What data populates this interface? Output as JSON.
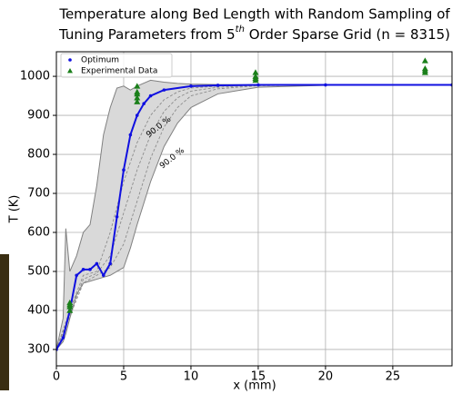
{
  "chart_data": {
    "type": "line",
    "title": {
      "line1": "Temperature along Bed Length with Random Sampling of",
      "line2_before": "Tuning Parameters from 5",
      "superscript": "th",
      "line2_after": " Order Sparse Grid (n = 8315)"
    },
    "x_label": "x (mm)",
    "y_label": "T (K)",
    "xlim": [
      0,
      29.4
    ],
    "ylim": [
      258,
      1063
    ],
    "xticks": [
      0,
      5,
      10,
      15,
      20,
      25
    ],
    "yticks": [
      300,
      400,
      500,
      600,
      700,
      800,
      900,
      1000
    ],
    "grid": true,
    "legend": "upper left",
    "envelope": {
      "color": "#d9d9d9",
      "edge_color": "#808080",
      "x": [
        0,
        0.5,
        0.7,
        1,
        1.5,
        2,
        2.5,
        3,
        3.5,
        4,
        4.5,
        5,
        5.5,
        6,
        7,
        8,
        9,
        10,
        12,
        15,
        20,
        29.4
      ],
      "upper": [
        300,
        380,
        610,
        500,
        540,
        600,
        620,
        720,
        850,
        920,
        970,
        975,
        965,
        975,
        990,
        985,
        982,
        980,
        979,
        978,
        978,
        978
      ],
      "lower": [
        300,
        320,
        340,
        380,
        440,
        470,
        475,
        480,
        485,
        490,
        500,
        510,
        560,
        620,
        730,
        820,
        880,
        920,
        955,
        972,
        977,
        978
      ]
    },
    "dashed_curves": {
      "color": "#8c8c8c",
      "x": [
        0,
        1,
        2,
        3,
        4,
        5,
        6,
        7,
        8,
        9,
        10,
        12,
        15,
        20,
        29.4
      ],
      "curves": [
        [
          300,
          400,
          490,
          500,
          600,
          730,
          830,
          900,
          940,
          960,
          970,
          975,
          978,
          978,
          978
        ],
        [
          300,
          390,
          480,
          495,
          540,
          650,
          760,
          850,
          910,
          945,
          962,
          972,
          977,
          978,
          978
        ],
        [
          300,
          385,
          470,
          490,
          510,
          570,
          680,
          790,
          870,
          920,
          950,
          968,
          976,
          978,
          978
        ]
      ]
    },
    "series": [
      {
        "name": "Optimum",
        "color": "#1010e0",
        "marker": "dot",
        "x": [
          0,
          0.5,
          1,
          1.5,
          2,
          2.5,
          3,
          3.5,
          4,
          4.5,
          5,
          5.5,
          6,
          6.5,
          7,
          8,
          10,
          12,
          15,
          20,
          29.4
        ],
        "values": [
          300,
          330,
          400,
          490,
          505,
          505,
          520,
          490,
          520,
          640,
          760,
          850,
          900,
          930,
          950,
          965,
          975,
          977,
          978,
          978,
          978
        ]
      },
      {
        "name": "Experimental Data",
        "color": "#1a7f1a",
        "marker": "triangle",
        "x": [
          1,
          1,
          1,
          1,
          6,
          6,
          6,
          6,
          6,
          14.8,
          14.8,
          14.8,
          14.8,
          27.4,
          27.4,
          27.4,
          27.4
        ],
        "values": [
          400,
          410,
          415,
          420,
          975,
          960,
          955,
          945,
          935,
          1010,
          1000,
          995,
          990,
          1040,
          1020,
          1015,
          1010
        ]
      }
    ],
    "annotations": [
      {
        "text": "90.0 %",
        "x": 7.6,
        "y": 870
      },
      {
        "text": "90.0 %",
        "x": 8.6,
        "y": 790
      }
    ]
  }
}
